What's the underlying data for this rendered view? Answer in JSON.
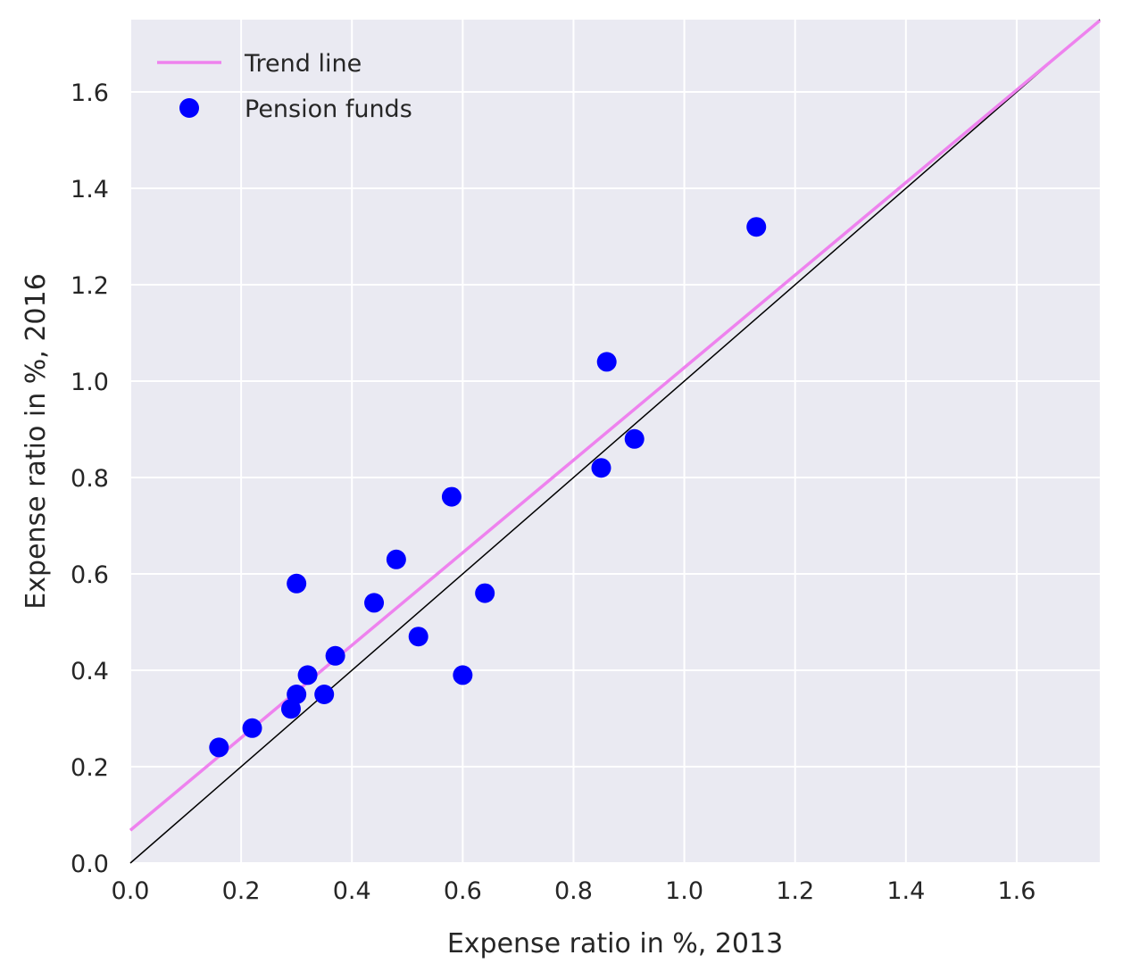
{
  "chart_data": {
    "type": "scatter",
    "title": "",
    "xlabel": "Expense ratio in %, 2013",
    "ylabel": "Expense ratio in %, 2016",
    "xlim": [
      0,
      1.75
    ],
    "ylim": [
      0,
      1.75
    ],
    "xticks": [
      "0.0",
      "0.2",
      "0.4",
      "0.6",
      "0.8",
      "1.0",
      "1.2",
      "1.4",
      "1.6"
    ],
    "yticks": [
      "0.0",
      "0.2",
      "0.4",
      "0.6",
      "0.8",
      "1.0",
      "1.2",
      "1.4",
      "1.6"
    ],
    "grid": true,
    "legend_position": "top-left",
    "background_color": "#eaeaf2",
    "series": [
      {
        "name": "Pension funds",
        "kind": "scatter",
        "color": "#0000ff",
        "points": [
          [
            0.16,
            0.24
          ],
          [
            0.22,
            0.28
          ],
          [
            0.29,
            0.32
          ],
          [
            0.3,
            0.35
          ],
          [
            0.3,
            0.58
          ],
          [
            0.32,
            0.39
          ],
          [
            0.35,
            0.35
          ],
          [
            0.37,
            0.43
          ],
          [
            0.44,
            0.54
          ],
          [
            0.48,
            0.63
          ],
          [
            0.52,
            0.47
          ],
          [
            0.58,
            0.76
          ],
          [
            0.6,
            0.39
          ],
          [
            0.64,
            0.56
          ],
          [
            0.85,
            0.82
          ],
          [
            0.86,
            1.04
          ],
          [
            0.91,
            0.88
          ],
          [
            1.13,
            1.32
          ]
        ]
      },
      {
        "name": "Trend line",
        "kind": "line",
        "color": "#ee82ee",
        "intercept": 0.068,
        "slope": 0.96
      }
    ],
    "reference_line": {
      "kind": "identity",
      "color": "#000000"
    }
  }
}
